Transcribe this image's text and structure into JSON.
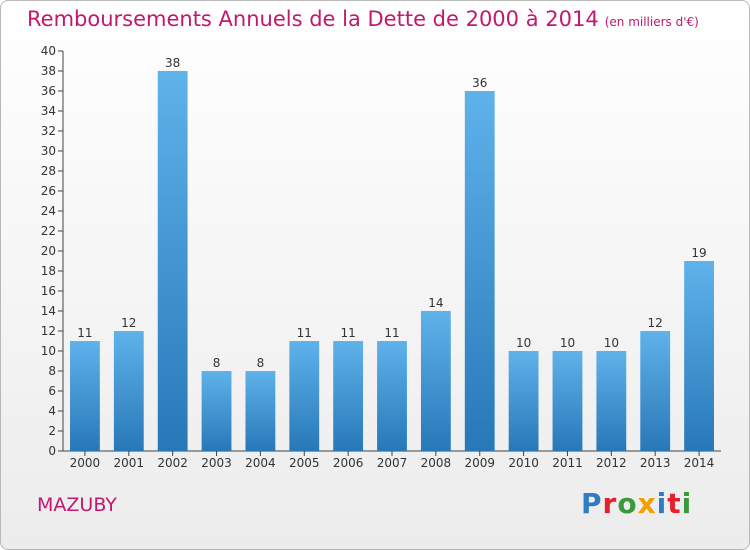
{
  "title": "Remboursements Annuels de la Dette de 2000 à 2014",
  "title_unit": "(en milliers d'€)",
  "commune": "MAZUBY",
  "logo_text": "Proxiti",
  "colors": {
    "title": "#c2186e",
    "bar_top": "#5fb2ea",
    "bar_bottom": "#2878b8"
  },
  "chart_data": {
    "type": "bar",
    "title": "Remboursements Annuels de la Dette de 2000 à 2014",
    "ylabel": "",
    "xlabel": "",
    "ylim": [
      0,
      40
    ],
    "ytick_step": 2,
    "grid": false,
    "categories": [
      "2000",
      "2001",
      "2002",
      "2003",
      "2004",
      "2005",
      "2006",
      "2007",
      "2008",
      "2009",
      "2010",
      "2011",
      "2012",
      "2013",
      "2014"
    ],
    "values": [
      11,
      12,
      38,
      8,
      8,
      11,
      11,
      11,
      14,
      36,
      10,
      10,
      10,
      12,
      19
    ]
  }
}
